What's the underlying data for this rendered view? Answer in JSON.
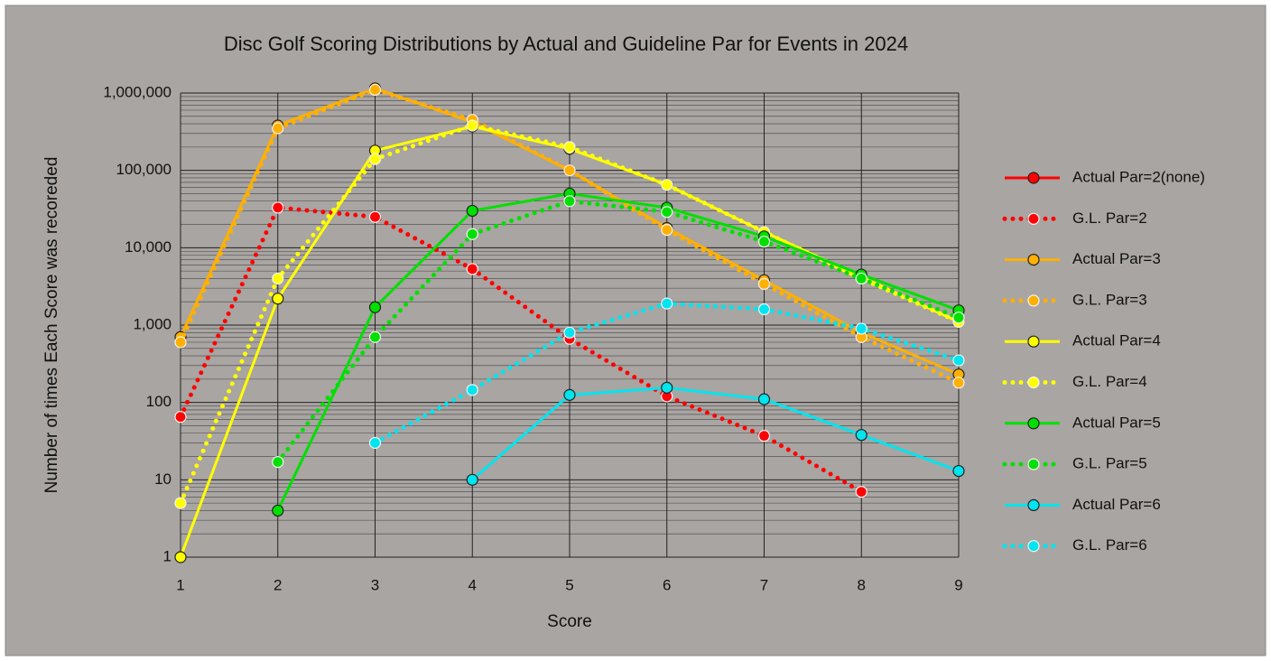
{
  "chart_data": {
    "type": "line",
    "title": "Disc Golf Scoring Distributions by Actual and Guideline Par for Events in 2024",
    "x_label": "Score",
    "y_label": "Number of times Each Score was recoreded",
    "x": [
      1,
      2,
      3,
      4,
      5,
      6,
      7,
      8,
      9
    ],
    "xlim": [
      1,
      9
    ],
    "xticks": [
      1,
      2,
      3,
      4,
      5,
      6,
      7,
      8,
      9
    ],
    "ylim": [
      1,
      1000000
    ],
    "log_scale_y": true,
    "grid": true,
    "minor_grid": true,
    "yticks": [
      1,
      10,
      100,
      {
        "value": 1000,
        "label": "1,000"
      },
      {
        "value": 10000,
        "label": "10,000"
      },
      {
        "value": 100000,
        "label": "100,000"
      },
      {
        "value": 1000000,
        "label": "1,000,000"
      }
    ],
    "legend": "right",
    "series": [
      {
        "name": "Actual Par=2(none)",
        "color": "#ff0000",
        "dotted": false,
        "values": [
          null,
          null,
          null,
          null,
          null,
          null,
          null,
          null,
          null
        ]
      },
      {
        "name": "G.L. Par=2",
        "color": "#ff0000",
        "dotted": true,
        "values": [
          65,
          33000,
          25000,
          5300,
          665,
          120,
          37,
          7,
          null
        ]
      },
      {
        "name": "Actual Par=3",
        "color": "#ffb000",
        "dotted": false,
        "values": [
          700,
          380000,
          1150000,
          420000,
          100000,
          18000,
          3800,
          800,
          230
        ]
      },
      {
        "name": "G.L. Par=3",
        "color": "#ffb000",
        "dotted": true,
        "values": [
          600,
          350000,
          1100000,
          450000,
          100000,
          17000,
          3400,
          700,
          180
        ]
      },
      {
        "name": "Actual Par=4",
        "color": "#ffff00",
        "dotted": false,
        "values": [
          1,
          2200,
          180000,
          370000,
          190000,
          65000,
          16000,
          4200,
          1100
        ]
      },
      {
        "name": "G.L. Par=4",
        "color": "#ffff00",
        "dotted": true,
        "values": [
          5,
          4000,
          140000,
          380000,
          200000,
          65000,
          16000,
          4000,
          1100
        ]
      },
      {
        "name": "Actual Par=5",
        "color": "#00e000",
        "dotted": false,
        "values": [
          null,
          4,
          1700,
          30000,
          50000,
          33000,
          14000,
          4500,
          1550
        ]
      },
      {
        "name": "G.L. Par=5",
        "color": "#00e000",
        "dotted": true,
        "values": [
          null,
          17,
          700,
          15000,
          40000,
          29000,
          12000,
          4000,
          1250
        ]
      },
      {
        "name": "Actual Par=6",
        "color": "#00e5f0",
        "dotted": false,
        "values": [
          null,
          null,
          null,
          10,
          125,
          155,
          110,
          38,
          13
        ]
      },
      {
        "name": "G.L. Par=6",
        "color": "#00e5f0",
        "dotted": true,
        "values": [
          null,
          null,
          30,
          145,
          800,
          1900,
          1600,
          900,
          350
        ]
      }
    ]
  }
}
